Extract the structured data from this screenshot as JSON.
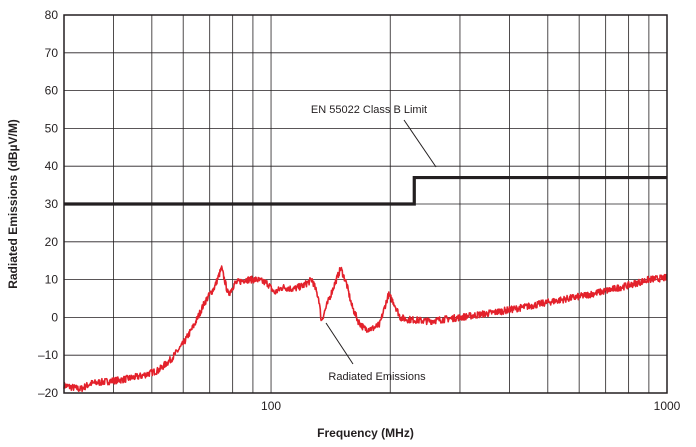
{
  "chart_data": {
    "type": "line",
    "title": "",
    "xlabel": "Frequency (MHz)",
    "ylabel": "Radiated Emissions (dBµV/M)",
    "x_scale": "log",
    "xlim": [
      30,
      1000
    ],
    "ylim": [
      -20,
      80
    ],
    "x_tick_labels": [
      {
        "value": 100,
        "label": "100"
      },
      {
        "value": 1000,
        "label": "1000"
      }
    ],
    "y_ticks": [
      -20,
      -10,
      0,
      10,
      20,
      30,
      40,
      50,
      60,
      70,
      80
    ],
    "y_tick_labels": [
      "–20",
      "–10",
      "0",
      "10",
      "20",
      "30",
      "40",
      "50",
      "60",
      "70",
      "80"
    ],
    "grid": true,
    "series": [
      {
        "name": "EN 55022 Class B Limit",
        "color": "#231f20",
        "style": "step",
        "points": [
          [
            30,
            30
          ],
          [
            230,
            30
          ],
          [
            230,
            37
          ],
          [
            1000,
            37
          ]
        ]
      },
      {
        "name": "Radiated Emissions",
        "color": "#e3212b",
        "style": "noisy",
        "points": [
          [
            30,
            -18
          ],
          [
            33,
            -19
          ],
          [
            35,
            -17.5
          ],
          [
            38,
            -17
          ],
          [
            42,
            -16.5
          ],
          [
            47,
            -15.5
          ],
          [
            52,
            -14
          ],
          [
            56,
            -11
          ],
          [
            60,
            -7
          ],
          [
            64,
            -2
          ],
          [
            68,
            4
          ],
          [
            72,
            8
          ],
          [
            75,
            13
          ],
          [
            78,
            6
          ],
          [
            81,
            9
          ],
          [
            86,
            10
          ],
          [
            92,
            10
          ],
          [
            98,
            9
          ],
          [
            102,
            6.5
          ],
          [
            107,
            8
          ],
          [
            114,
            7.5
          ],
          [
            121,
            8.5
          ],
          [
            127,
            10
          ],
          [
            132,
            5
          ],
          [
            134,
            -1
          ],
          [
            137,
            2
          ],
          [
            145,
            9
          ],
          [
            150,
            13
          ],
          [
            155,
            9
          ],
          [
            160,
            3
          ],
          [
            166,
            -1
          ],
          [
            172,
            -3
          ],
          [
            180,
            -3
          ],
          [
            188,
            -2
          ],
          [
            194,
            3
          ],
          [
            198,
            6
          ],
          [
            204,
            4
          ],
          [
            212,
            0
          ],
          [
            220,
            -0.5
          ],
          [
            250,
            -1
          ],
          [
            300,
            0
          ],
          [
            350,
            1
          ],
          [
            400,
            2
          ],
          [
            450,
            3
          ],
          [
            500,
            4
          ],
          [
            600,
            5.5
          ],
          [
            700,
            7
          ],
          [
            800,
            8.5
          ],
          [
            900,
            10
          ],
          [
            1000,
            10.5
          ]
        ]
      }
    ],
    "annotations": [
      {
        "text": "EN 55022 Class B Limit",
        "series": "EN 55022 Class B Limit"
      },
      {
        "text": "Radiated Emissions",
        "series": "Radiated Emissions"
      }
    ]
  }
}
